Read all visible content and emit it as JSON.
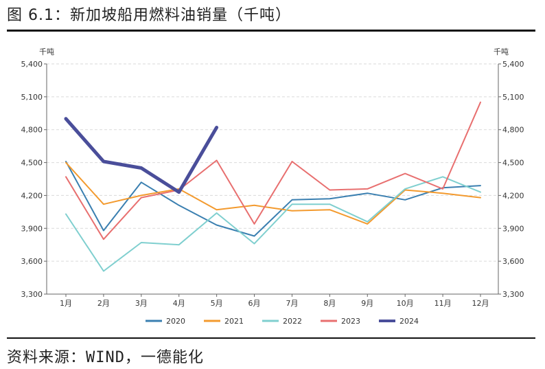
{
  "figure": {
    "title": "图 6.1：新加坡船用燃料油销量（千吨）",
    "source": "资料来源：WIND，一德能化"
  },
  "chart_data": {
    "type": "line",
    "left_unit": "千吨",
    "right_unit": "千吨",
    "categories": [
      "1月",
      "2月",
      "3月",
      "4月",
      "5月",
      "6月",
      "7月",
      "8月",
      "9月",
      "10月",
      "11月",
      "12月"
    ],
    "yticks": [
      "3,300",
      "3,600",
      "3,900",
      "4,200",
      "4,500",
      "4,800",
      "5,100",
      "5,400"
    ],
    "ylim": [
      3300,
      5400
    ],
    "grid": "horizontal dashed",
    "legend_position": "bottom",
    "series": [
      {
        "name": "2020",
        "color": "#3a7fb0",
        "width": 2,
        "values": [
          4510,
          3880,
          4320,
          4110,
          3930,
          3830,
          4160,
          4170,
          4220,
          4160,
          4270,
          4290
        ]
      },
      {
        "name": "2021",
        "color": "#f39a2e",
        "width": 2,
        "values": [
          4500,
          4120,
          4200,
          4260,
          4070,
          4110,
          4060,
          4070,
          3940,
          4250,
          4220,
          4180
        ]
      },
      {
        "name": "2022",
        "color": "#7fcfcf",
        "width": 2,
        "values": [
          4030,
          3510,
          3770,
          3750,
          4040,
          3760,
          4120,
          4120,
          3960,
          4260,
          4370,
          4230
        ]
      },
      {
        "name": "2023",
        "color": "#e86f6f",
        "width": 2,
        "values": [
          4370,
          3800,
          4180,
          4250,
          4520,
          3940,
          4510,
          4250,
          4260,
          4400,
          4260,
          5050
        ]
      },
      {
        "name": "2024",
        "color": "#4a4e9a",
        "width": 5,
        "values": [
          4900,
          4510,
          4450,
          4230,
          4820,
          null,
          null,
          null,
          null,
          null,
          null,
          null
        ]
      }
    ]
  }
}
